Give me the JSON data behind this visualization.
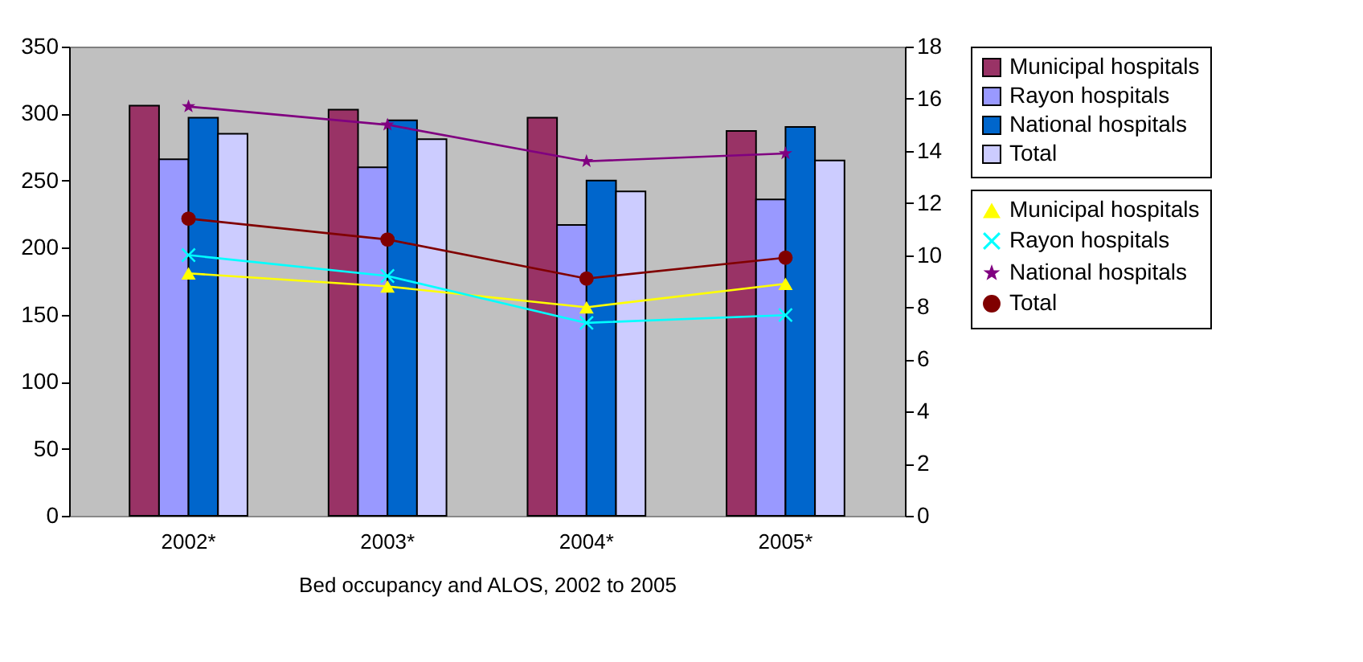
{
  "chart_data": {
    "type": "bar",
    "xlabel": "Bed occupancy and ALOS, 2002 to 2005",
    "categories": [
      "2002*",
      "2003*",
      "2004*",
      "2005*"
    ],
    "series": [
      {
        "name": "Municipal hospitals",
        "color": "#993366",
        "values": [
          306,
          303,
          297,
          287
        ]
      },
      {
        "name": "Rayon hospitals",
        "color": "#9999ff",
        "values": [
          266,
          260,
          217,
          236
        ]
      },
      {
        "name": "National hospitals",
        "color": "#0066cc",
        "values": [
          297,
          295,
          250,
          290
        ]
      },
      {
        "name": "Total",
        "color": "#ccccff",
        "values": [
          285,
          281,
          242,
          265
        ]
      },
      {
        "name": "Municipal hospitals",
        "type": "line",
        "axis": "y2",
        "marker": "triangle",
        "line_style": "solid",
        "color": "#ffff00",
        "values": [
          9.3,
          8.8,
          8.0,
          8.9
        ]
      },
      {
        "name": "Rayon hospitals",
        "type": "line",
        "axis": "y2",
        "marker": "cross",
        "line_style": "solid",
        "color": "#00ffff",
        "values": [
          10.0,
          9.2,
          7.4,
          7.7
        ]
      },
      {
        "name": "National hospitals",
        "type": "line",
        "axis": "y2",
        "marker": "star",
        "line_style": "solid",
        "color": "#800080",
        "values": [
          15.7,
          15.0,
          13.6,
          13.9
        ]
      },
      {
        "name": "Total",
        "type": "line",
        "axis": "y2",
        "marker": "circle",
        "line_style": "solid",
        "color": "#800000",
        "values": [
          11.4,
          10.6,
          9.1,
          9.9
        ]
      }
    ],
    "ylim": [
      0,
      350
    ],
    "yticks": [
      0,
      50,
      100,
      150,
      200,
      250,
      300,
      350
    ],
    "y2lim": [
      0,
      18
    ],
    "y2ticks": [
      0,
      2,
      4,
      6,
      8,
      10,
      12,
      14,
      16,
      18
    ],
    "grid": false,
    "legend": "right"
  }
}
